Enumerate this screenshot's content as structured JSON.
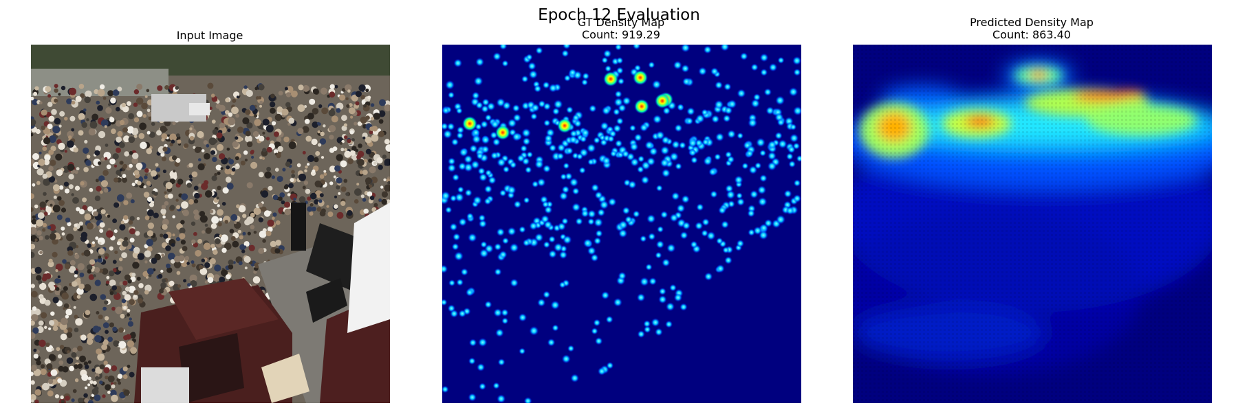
{
  "figure": {
    "suptitle": "Epoch 12 Evaluation",
    "panels": [
      {
        "title": "Input Image",
        "subtitle": ""
      },
      {
        "title": "GT Density Map",
        "subtitle": "Count: 919.29"
      },
      {
        "title": "Predicted Density Map",
        "subtitle": "Count: 863.40"
      }
    ],
    "colormap": "jet",
    "colors": {
      "jet_low": "#00007f",
      "jet_mid": "#00ffff",
      "jet_high": "#ff0000"
    }
  }
}
